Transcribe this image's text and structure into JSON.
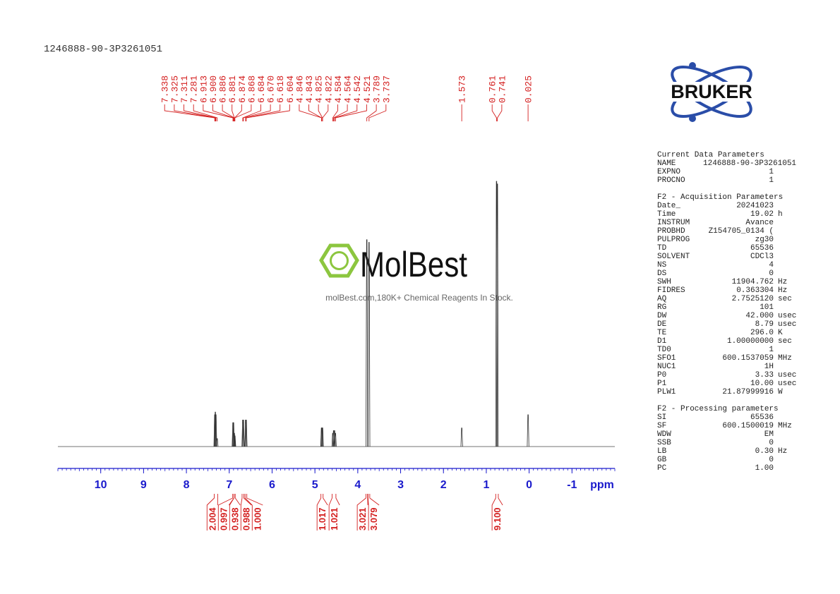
{
  "title": "1246888-90-3P3261051",
  "watermark": {
    "brand": "MolBest",
    "tagline": "molBest.com,180K+ Chemical Reagents In Stock."
  },
  "logo": "BRUKER",
  "chart_data": {
    "type": "nmr",
    "x_label": "ppm",
    "xlim": [
      11,
      -2
    ],
    "xticks": [
      10,
      9,
      8,
      7,
      6,
      5,
      4,
      3,
      2,
      1,
      0,
      -1
    ],
    "ylim": [
      0,
      100
    ],
    "peaks": {
      "ppm": [
        7.338,
        7.325,
        7.311,
        7.281,
        6.913,
        6.9,
        6.886,
        6.881,
        6.874,
        6.868,
        6.684,
        6.67,
        6.618,
        6.604,
        4.846,
        4.843,
        4.825,
        4.822,
        4.584,
        4.564,
        4.542,
        4.521,
        3.789,
        3.737,
        1.573,
        0.761,
        0.741,
        0.025
      ],
      "value_labels": [
        "7.338",
        "7.325",
        "7.311",
        "7.281",
        "6.913",
        "6.900",
        "6.886",
        "6.881",
        "6.874",
        "6.868",
        "6.684",
        "6.670",
        "6.618",
        "6.604",
        "4.846",
        "4.843",
        "4.825",
        "4.822",
        "4.584",
        "4.564",
        "4.542",
        "4.521",
        "3.789",
        "3.737",
        "1.573",
        "0.761",
        "0.741",
        "0.025"
      ],
      "intensity": [
        12,
        13,
        12,
        3,
        9,
        9,
        5,
        5,
        4,
        4,
        10,
        10,
        10,
        10,
        7,
        7,
        7,
        7,
        5,
        6,
        6,
        5,
        78,
        77,
        7,
        100,
        99,
        12
      ],
      "color": "#d42020"
    },
    "integrals": {
      "values": [
        2.004,
        0.997,
        0.938,
        0.988,
        1.0,
        1.017,
        1.021,
        3.021,
        3.079,
        9.1
      ],
      "value_labels": [
        "2.004",
        "0.997",
        "0.938",
        "0.988",
        "1.000",
        "1.017",
        "1.021",
        "3.021",
        "3.079",
        "9.100"
      ],
      "ranges": [
        [
          7.35,
          7.27
        ],
        [
          6.92,
          6.89
        ],
        [
          6.89,
          6.86
        ],
        [
          6.7,
          6.66
        ],
        [
          6.63,
          6.59
        ],
        [
          4.86,
          4.81
        ],
        [
          4.6,
          4.51
        ],
        [
          3.81,
          3.77
        ],
        [
          3.76,
          3.72
        ],
        [
          0.78,
          0.72
        ]
      ],
      "color": "#d42020"
    },
    "axis_color": "#1a1acc"
  },
  "parameters": [
    {
      "title": "Current Data Parameters",
      "rows": [
        [
          "NAME",
          "1246888-90-3P3261051"
        ],
        [
          "EXPNO",
          "1"
        ],
        [
          "PROCNO",
          "1"
        ]
      ]
    },
    {
      "title": "F2 - Acquisition Parameters",
      "rows": [
        [
          "Date_",
          "20241023"
        ],
        [
          "Time",
          "19.02",
          "h"
        ],
        [
          "INSTRUM",
          "Avance"
        ],
        [
          "PROBHD",
          "Z154705_0134 ("
        ],
        [
          "PULPROG",
          "zg30"
        ],
        [
          "TD",
          "65536"
        ],
        [
          "SOLVENT",
          "CDCl3"
        ],
        [
          "NS",
          "4"
        ],
        [
          "DS",
          "0"
        ],
        [
          "SWH",
          "11904.762",
          "Hz"
        ],
        [
          "FIDRES",
          "0.363304",
          "Hz"
        ],
        [
          "AQ",
          "2.7525120",
          "sec"
        ],
        [
          "RG",
          "101"
        ],
        [
          "DW",
          "42.000",
          "usec"
        ],
        [
          "DE",
          "8.79",
          "usec"
        ],
        [
          "TE",
          "296.0",
          "K"
        ],
        [
          "D1",
          "1.00000000",
          "sec"
        ],
        [
          "TD0",
          "1"
        ],
        [
          "SFO1",
          "600.1537059",
          "MHz"
        ],
        [
          "NUC1",
          "1H"
        ],
        [
          "P0",
          "3.33",
          "usec"
        ],
        [
          "P1",
          "10.00",
          "usec"
        ],
        [
          "PLW1",
          "21.87999916",
          "W"
        ]
      ]
    },
    {
      "title": "F2 - Processing parameters",
      "rows": [
        [
          "SI",
          "65536"
        ],
        [
          "SF",
          "600.1500019",
          "MHz"
        ],
        [
          "WDW",
          "EM"
        ],
        [
          "SSB",
          "0"
        ],
        [
          "LB",
          "0.30",
          "Hz"
        ],
        [
          "GB",
          "0"
        ],
        [
          "PC",
          "1.00"
        ]
      ]
    }
  ]
}
